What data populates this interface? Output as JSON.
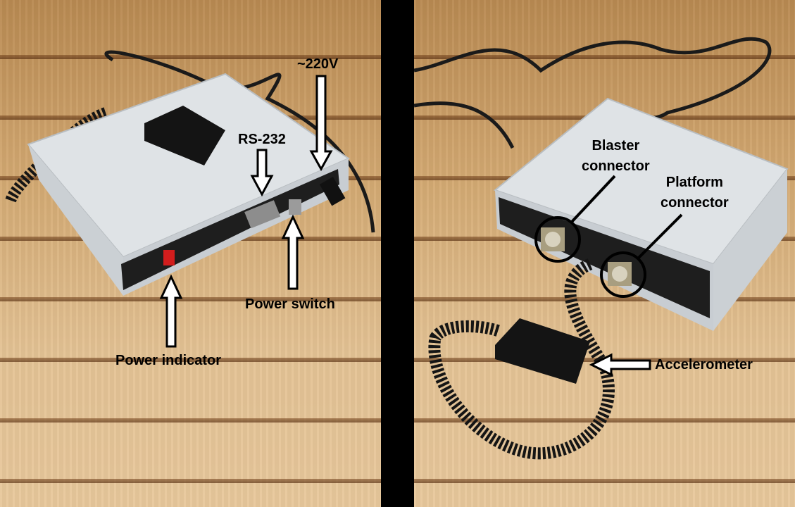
{
  "left_photo": {
    "labels": {
      "voltage": "~220V",
      "rs232": "RS-232",
      "power_switch": "Power switch",
      "power_indicator": "Power indicator"
    }
  },
  "right_photo": {
    "labels": {
      "blaster_line1": "Blaster",
      "blaster_line2": "connector",
      "platform_line1": "Platform",
      "platform_line2": "connector",
      "accelerometer": "Accelerometer"
    }
  },
  "colors": {
    "background": "#000000",
    "device_case": "#dfe3e6",
    "device_front": "#1e1e1e",
    "indicator": "#d21d1d",
    "label_text": "#000000"
  }
}
